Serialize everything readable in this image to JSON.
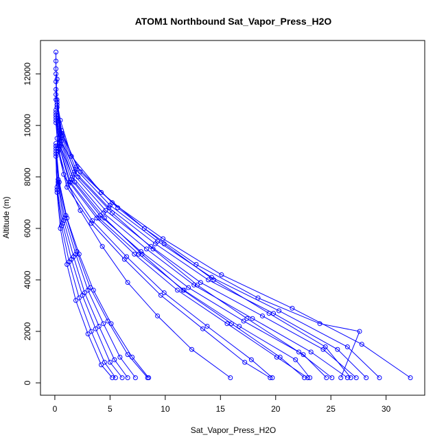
{
  "chart_data": {
    "type": "line",
    "title": "ATOM1 Northbound Sat_Vapor_Press_H2O",
    "xlabel": "Sat_Vapor_Press_H2O",
    "ylabel": "Altitude (m)",
    "xlim": [
      -1.3,
      33.5
    ],
    "ylim": [
      -480,
      13300
    ],
    "x_ticks": [
      0,
      5,
      10,
      15,
      20,
      25,
      30
    ],
    "y_ticks": [
      0,
      2000,
      4000,
      6000,
      8000,
      10000,
      12000
    ],
    "grid": false,
    "legend": "none",
    "marker": "open-circle",
    "color": "#0000ff",
    "series": [
      {
        "x": [
          32.2,
          27.8,
          21.5,
          15.1,
          9.8,
          5.2,
          2.0,
          0.6,
          0.2,
          0.1
        ],
        "y": [
          200,
          1500,
          2900,
          4200,
          5600,
          7000,
          8400,
          9800,
          11000,
          12000
        ]
      },
      {
        "x": [
          29.4,
          26.5,
          20.3,
          14.2,
          9.3,
          5.0,
          1.9,
          0.6,
          0.2,
          0.1
        ],
        "y": [
          200,
          1400,
          2800,
          4100,
          5500,
          6900,
          8300,
          9700,
          10900,
          11700
        ]
      },
      {
        "x": [
          28.2,
          25.6,
          19.8,
          13.9,
          9.1,
          4.9,
          1.8,
          0.6,
          0.2
        ],
        "y": [
          200,
          1300,
          2700,
          4000,
          5400,
          6800,
          8200,
          9600,
          10800
        ]
      },
      {
        "x": [
          27.3,
          24.3,
          18.8,
          13.2,
          8.7,
          4.6,
          1.7,
          0.5,
          0.2
        ],
        "y": [
          200,
          1300,
          2600,
          3900,
          5300,
          6700,
          8100,
          9500,
          10700
        ]
      },
      {
        "x": [
          26.5,
          23.2,
          17.9,
          12.6,
          8.3,
          4.4,
          1.6,
          0.5,
          0.1
        ],
        "y": [
          200,
          1200,
          2500,
          3800,
          5200,
          6600,
          8000,
          9400,
          10600
        ]
      },
      {
        "x": [
          25.9,
          27.6,
          24.0,
          18.4,
          12.8,
          8.1,
          4.2,
          1.5,
          0.5,
          0.1
        ],
        "y": [
          200,
          2000,
          2300,
          3300,
          4600,
          6000,
          7400,
          8800,
          10200,
          11200
        ]
      },
      {
        "x": [
          24.6,
          22.5,
          17.1,
          12.1,
          7.8,
          4.1,
          1.5,
          0.4,
          0.1
        ],
        "y": [
          200,
          1100,
          2400,
          3700,
          5100,
          6500,
          7900,
          9300,
          10500
        ]
      },
      {
        "x": [
          23.1,
          21.8,
          16.7,
          11.7,
          7.6,
          4.0,
          1.4,
          0.4,
          0.1
        ],
        "y": [
          200,
          900,
          2200,
          3600,
          5000,
          6400,
          7800,
          9200,
          10400
        ]
      },
      {
        "x": [
          22.9,
          20.1,
          15.6,
          11.1,
          7.2,
          3.8,
          1.3,
          0.4,
          0.1
        ],
        "y": [
          200,
          1000,
          2300,
          3600,
          5000,
          6400,
          7800,
          9200,
          10300
        ]
      },
      {
        "x": [
          19.7,
          17.8,
          13.8,
          9.9,
          6.5,
          3.4,
          1.2,
          0.3,
          0.1
        ],
        "y": [
          200,
          900,
          2200,
          3500,
          4900,
          6300,
          7700,
          9100,
          10200
        ]
      },
      {
        "x": [
          19.5,
          17.2,
          13.4,
          9.6,
          6.3,
          3.3,
          1.1,
          0.3,
          0.1
        ],
        "y": [
          200,
          800,
          2100,
          3400,
          4800,
          6200,
          7600,
          9000,
          10100
        ]
      },
      {
        "x": [
          15.9,
          12.4,
          9.3,
          6.6,
          4.3,
          2.3,
          0.8,
          0.2
        ],
        "y": [
          200,
          1300,
          2600,
          3900,
          5300,
          6700,
          8100,
          9500
        ]
      },
      {
        "x": [
          8.5,
          7.0,
          5.1,
          3.5,
          2.2,
          1.1,
          0.4,
          0.1
        ],
        "y": [
          200,
          1000,
          2300,
          3600,
          5000,
          6400,
          7800,
          9200
        ]
      },
      {
        "x": [
          8.4,
          6.6,
          4.8,
          3.2,
          2.0,
          1.0,
          0.3,
          0.1
        ],
        "y": [
          200,
          1100,
          2400,
          3700,
          5100,
          6500,
          7900,
          9300
        ]
      },
      {
        "x": [
          7.3,
          5.9,
          4.4,
          3.0,
          1.9,
          0.9,
          0.3,
          0.1
        ],
        "y": [
          200,
          1000,
          2300,
          3600,
          5000,
          6400,
          7800,
          9200
        ]
      },
      {
        "x": [
          6.6,
          5.4,
          4.0,
          2.7,
          1.7,
          0.8,
          0.3,
          0.1
        ],
        "y": [
          200,
          900,
          2200,
          3500,
          4900,
          6300,
          7700,
          9100
        ]
      },
      {
        "x": [
          6.1,
          5.0,
          3.7,
          2.5,
          1.5,
          0.7,
          0.2,
          0.1
        ],
        "y": [
          200,
          800,
          2100,
          3400,
          4800,
          6200,
          7600,
          9000
        ]
      },
      {
        "x": [
          5.5,
          4.5,
          3.3,
          2.2,
          1.3,
          0.6,
          0.2,
          0.1
        ],
        "y": [
          200,
          800,
          2000,
          3300,
          4700,
          6100,
          7500,
          8900
        ]
      },
      {
        "x": [
          5.2,
          4.2,
          3.0,
          1.9,
          1.1,
          0.5,
          0.2,
          0.1
        ],
        "y": [
          200,
          700,
          1900,
          3200,
          4600,
          6000,
          7400,
          8800
        ]
      },
      {
        "x": [
          25.1,
          22.1,
          17.4,
          12.9,
          8.9,
          5.2,
          2.1,
          0.6,
          0.2
        ],
        "y": [
          200,
          1200,
          2500,
          3800,
          5200,
          6600,
          8000,
          9400,
          10700
        ]
      },
      {
        "x": [
          26.8,
          24.5,
          19.4,
          14.4,
          9.9,
          5.7,
          2.3,
          0.7,
          0.2
        ],
        "y": [
          200,
          1400,
          2700,
          4000,
          5400,
          6800,
          8200,
          9600,
          10800
        ]
      },
      {
        "x": [
          22.6,
          20.4,
          16.0,
          11.6,
          7.9,
          4.5,
          1.8,
          0.5,
          0.1
        ],
        "y": [
          200,
          1000,
          2300,
          3600,
          5000,
          6400,
          7800,
          9200,
          10400
        ]
      },
      {
        "x": [
          0.1,
          0.1,
          0.2,
          0.1,
          0.1,
          0.1
        ],
        "y": [
          11000,
          11400,
          11800,
          12200,
          12500,
          12850
        ]
      }
    ]
  }
}
